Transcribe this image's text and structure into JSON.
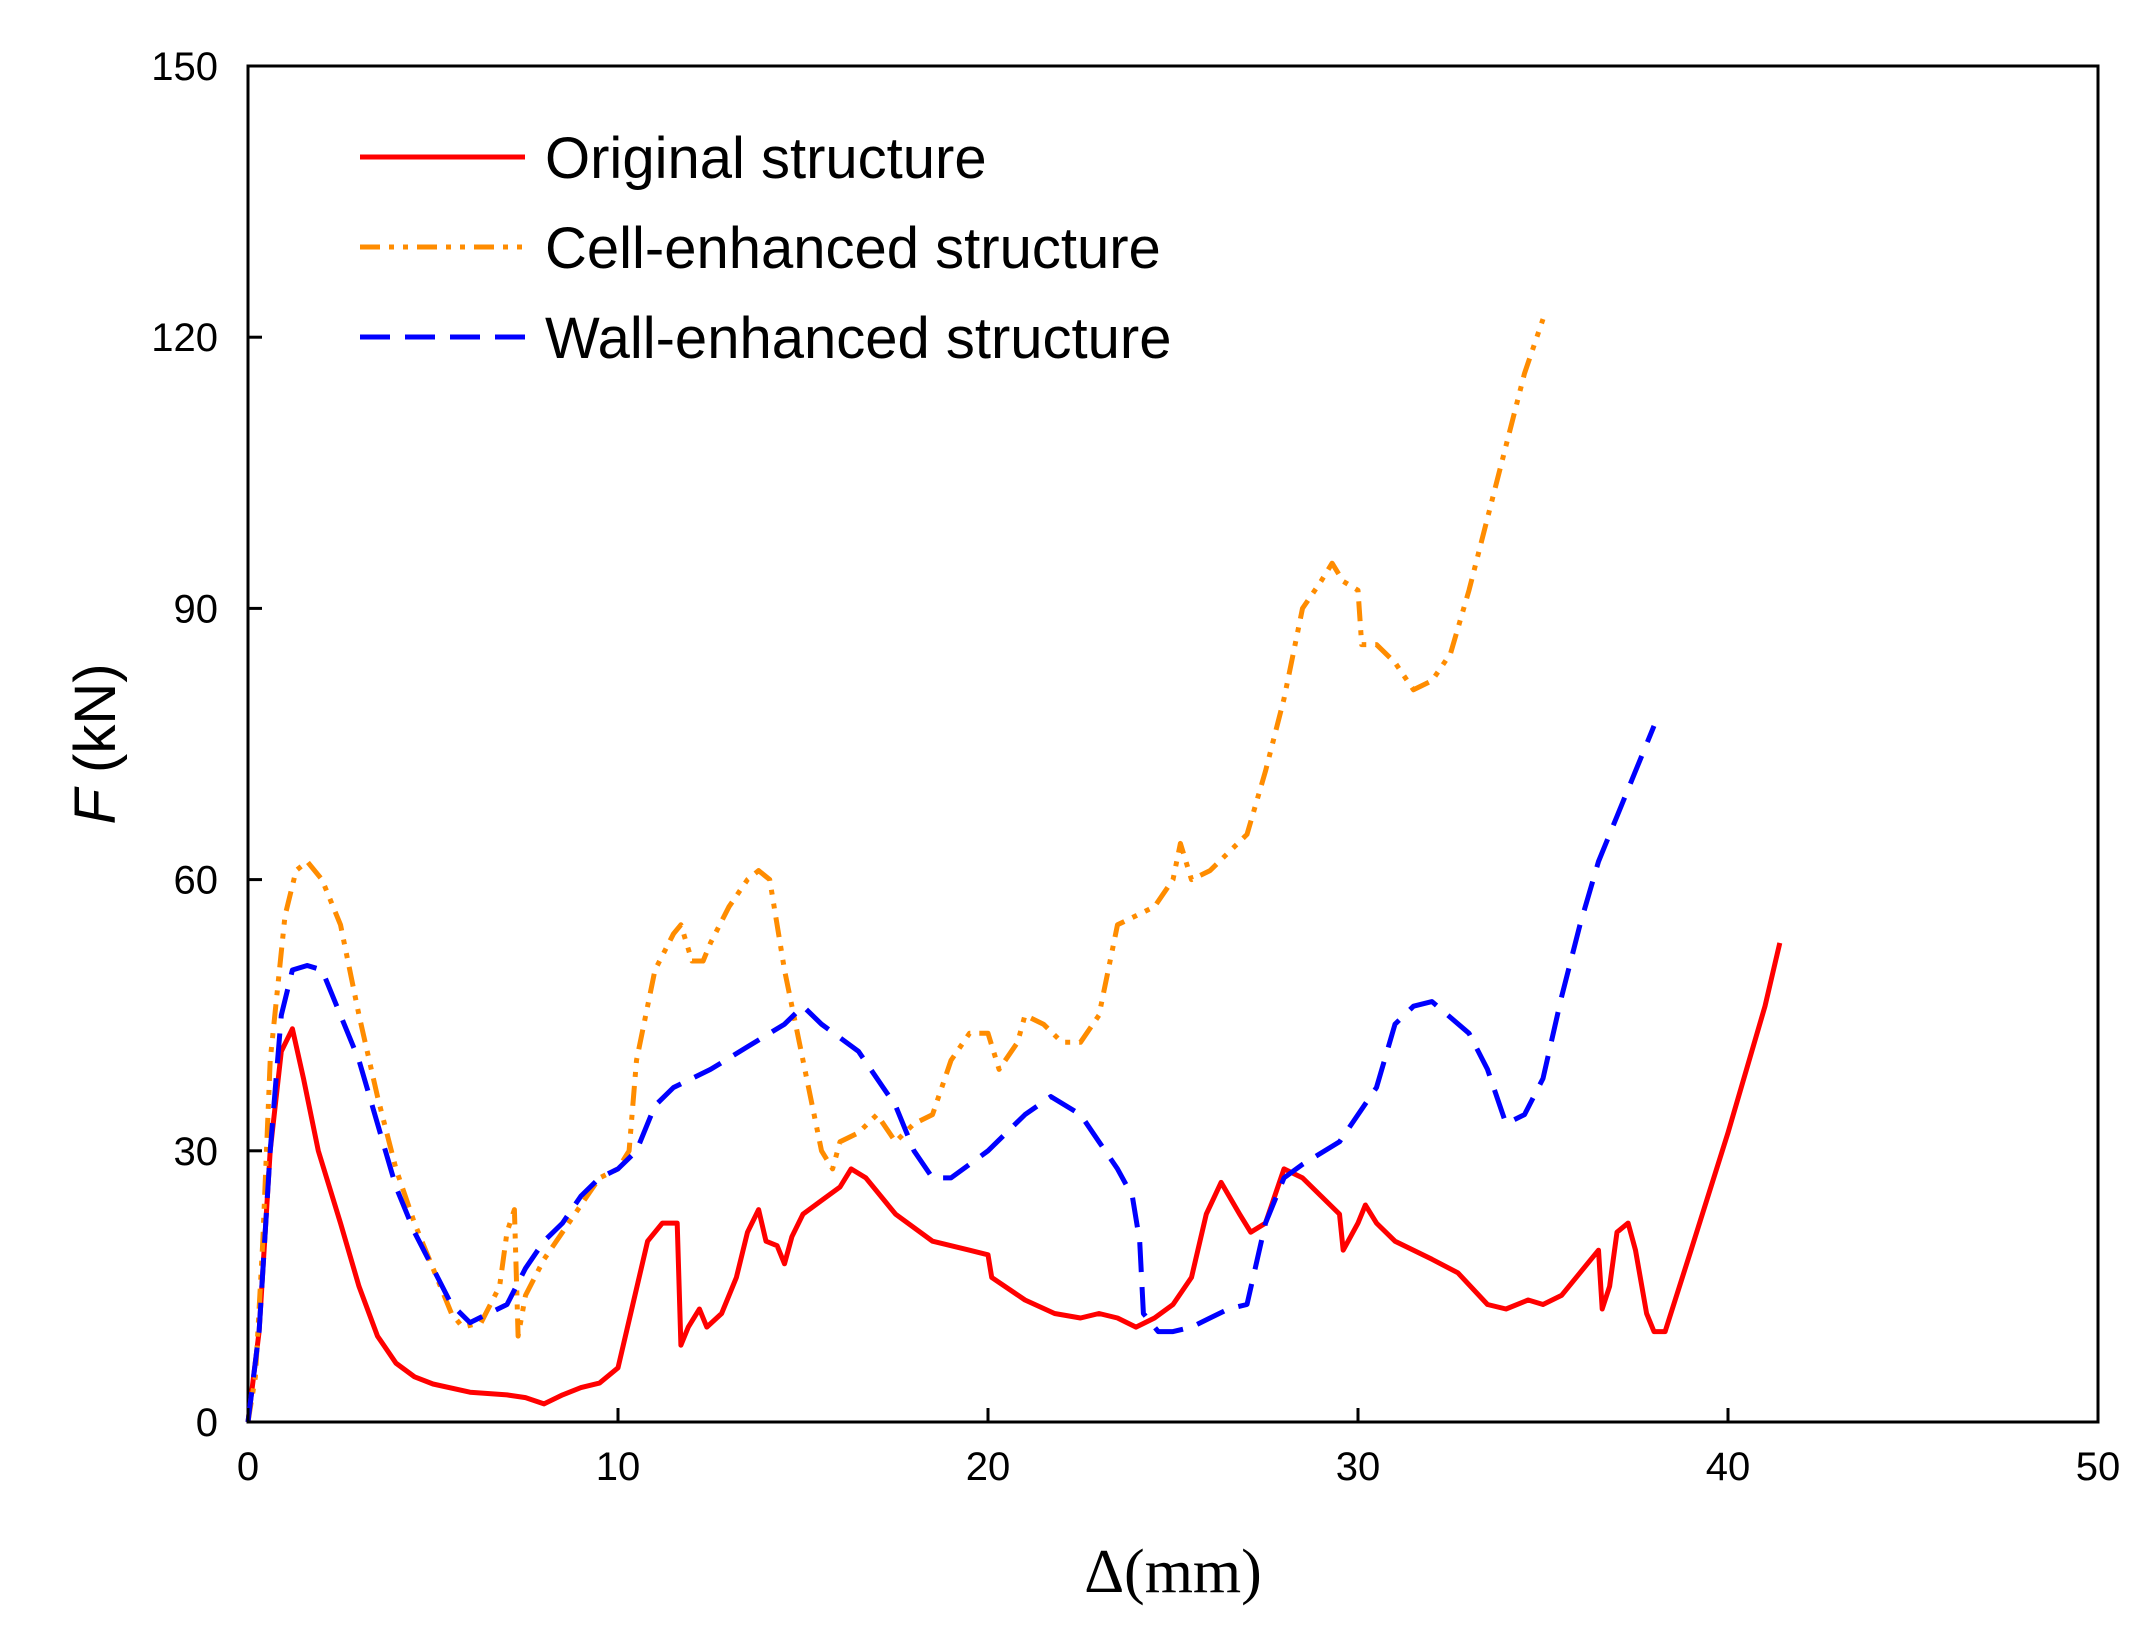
{
  "chart_data": {
    "type": "line",
    "xlabel": "Δ(mm)",
    "ylabel_var": "F",
    "ylabel_unit": " (kN)",
    "xlim": [
      0,
      50
    ],
    "ylim": [
      0,
      150
    ],
    "xticks": [
      0,
      10,
      20,
      30,
      40,
      50
    ],
    "yticks": [
      0,
      30,
      60,
      90,
      120,
      150
    ],
    "grid": false,
    "legend_position": "top-left",
    "series": [
      {
        "name": "Original structure",
        "color": "#ff0000",
        "style": "solid",
        "points": [
          [
            0,
            0
          ],
          [
            0.3,
            10
          ],
          [
            0.6,
            30
          ],
          [
            0.9,
            41
          ],
          [
            1.2,
            43.5
          ],
          [
            1.5,
            38
          ],
          [
            1.9,
            30
          ],
          [
            2.5,
            22
          ],
          [
            3,
            15
          ],
          [
            3.5,
            9.5
          ],
          [
            4,
            6.5
          ],
          [
            4.5,
            5
          ],
          [
            5,
            4.2
          ],
          [
            6,
            3.3
          ],
          [
            7,
            3
          ],
          [
            7.5,
            2.7
          ],
          [
            8,
            2
          ],
          [
            8.5,
            3
          ],
          [
            9,
            3.8
          ],
          [
            9.5,
            4.3
          ],
          [
            10,
            6
          ],
          [
            10.4,
            13
          ],
          [
            10.8,
            20
          ],
          [
            11.2,
            22
          ],
          [
            11.6,
            22
          ],
          [
            11.7,
            8.5
          ],
          [
            11.9,
            10.5
          ],
          [
            12.2,
            12.5
          ],
          [
            12.4,
            10.5
          ],
          [
            12.8,
            12
          ],
          [
            13.2,
            16
          ],
          [
            13.5,
            21
          ],
          [
            13.8,
            23.5
          ],
          [
            14,
            20
          ],
          [
            14.3,
            19.5
          ],
          [
            14.5,
            17.5
          ],
          [
            14.7,
            20.5
          ],
          [
            15,
            23
          ],
          [
            15.5,
            24.5
          ],
          [
            16,
            26
          ],
          [
            16.3,
            28
          ],
          [
            16.7,
            27
          ],
          [
            17.5,
            23
          ],
          [
            18.5,
            20
          ],
          [
            19.5,
            19
          ],
          [
            20,
            18.5
          ],
          [
            20.1,
            16
          ],
          [
            21,
            13.5
          ],
          [
            21.8,
            12
          ],
          [
            22.5,
            11.5
          ],
          [
            23,
            12
          ],
          [
            23.5,
            11.5
          ],
          [
            24,
            10.5
          ],
          [
            24.5,
            11.5
          ],
          [
            25,
            13
          ],
          [
            25.5,
            16
          ],
          [
            25.9,
            23
          ],
          [
            26.3,
            26.5
          ],
          [
            26.8,
            23
          ],
          [
            27.1,
            21
          ],
          [
            27.5,
            22
          ],
          [
            28,
            28
          ],
          [
            28.5,
            27
          ],
          [
            29,
            25
          ],
          [
            29.5,
            23
          ],
          [
            29.6,
            19
          ],
          [
            30,
            22
          ],
          [
            30.2,
            24
          ],
          [
            30.5,
            22
          ],
          [
            31,
            20
          ],
          [
            32,
            18
          ],
          [
            32.7,
            16.5
          ],
          [
            33.5,
            13
          ],
          [
            34,
            12.5
          ],
          [
            34.6,
            13.5
          ],
          [
            35,
            13
          ],
          [
            35.5,
            14
          ],
          [
            36,
            16.5
          ],
          [
            36.5,
            19
          ],
          [
            36.6,
            12.5
          ],
          [
            36.8,
            15
          ],
          [
            37,
            21
          ],
          [
            37.3,
            22
          ],
          [
            37.5,
            19
          ],
          [
            37.8,
            12
          ],
          [
            38,
            10
          ],
          [
            38.3,
            10
          ],
          [
            39,
            19
          ],
          [
            40,
            32
          ],
          [
            41,
            46
          ],
          [
            41.4,
            53
          ]
        ]
      },
      {
        "name": "Cell-enhanced structure",
        "color": "#ff8c00",
        "style": "dashdotdot",
        "points": [
          [
            0,
            0
          ],
          [
            0.2,
            5
          ],
          [
            0.4,
            20
          ],
          [
            0.6,
            40
          ],
          [
            0.8,
            48
          ],
          [
            1,
            56
          ],
          [
            1.3,
            61
          ],
          [
            1.6,
            62
          ],
          [
            2,
            60
          ],
          [
            2.5,
            55
          ],
          [
            3,
            45
          ],
          [
            3.5,
            36
          ],
          [
            4,
            28
          ],
          [
            4.5,
            22
          ],
          [
            5,
            17
          ],
          [
            5.5,
            12
          ],
          [
            5.8,
            10.5
          ],
          [
            6.3,
            11
          ],
          [
            6.8,
            15
          ],
          [
            7,
            21
          ],
          [
            7.2,
            23.5
          ],
          [
            7.3,
            9.5
          ],
          [
            7.5,
            14
          ],
          [
            8,
            18
          ],
          [
            8.5,
            21
          ],
          [
            9,
            24
          ],
          [
            9.5,
            27
          ],
          [
            10,
            28
          ],
          [
            10.3,
            30
          ],
          [
            10.5,
            40
          ],
          [
            11,
            50
          ],
          [
            11.5,
            54
          ],
          [
            11.7,
            55
          ],
          [
            12,
            51
          ],
          [
            12.3,
            51
          ],
          [
            12.5,
            53
          ],
          [
            13,
            57
          ],
          [
            13.5,
            60
          ],
          [
            13.8,
            61
          ],
          [
            14.1,
            60
          ],
          [
            14.5,
            50
          ],
          [
            15,
            40
          ],
          [
            15.5,
            30
          ],
          [
            15.8,
            28
          ],
          [
            16,
            31
          ],
          [
            16.5,
            32
          ],
          [
            17,
            34
          ],
          [
            17.5,
            31
          ],
          [
            18,
            33
          ],
          [
            18.5,
            34
          ],
          [
            19,
            40
          ],
          [
            19.5,
            43
          ],
          [
            20,
            43
          ],
          [
            20.3,
            39
          ],
          [
            20.8,
            42
          ],
          [
            21,
            45
          ],
          [
            21.5,
            44
          ],
          [
            22,
            42
          ],
          [
            22.5,
            42
          ],
          [
            23,
            45
          ],
          [
            23.5,
            55
          ],
          [
            24,
            56
          ],
          [
            24.5,
            57
          ],
          [
            25,
            60
          ],
          [
            25.2,
            64
          ],
          [
            25.5,
            60
          ],
          [
            26,
            61
          ],
          [
            27,
            65
          ],
          [
            27.5,
            72
          ],
          [
            28,
            80
          ],
          [
            28.5,
            90
          ],
          [
            29,
            93
          ],
          [
            29.3,
            95
          ],
          [
            29.6,
            93
          ],
          [
            30,
            92
          ],
          [
            30.1,
            86
          ],
          [
            30.5,
            86
          ],
          [
            31,
            84
          ],
          [
            31.5,
            81
          ],
          [
            32,
            82
          ],
          [
            32.5,
            85
          ],
          [
            33,
            92
          ],
          [
            33.5,
            100
          ],
          [
            34,
            108
          ],
          [
            34.5,
            116
          ],
          [
            35,
            122
          ]
        ]
      },
      {
        "name": "Wall-enhanced structure",
        "color": "#0000ff",
        "style": "dashed",
        "points": [
          [
            0,
            0
          ],
          [
            0.3,
            10
          ],
          [
            0.6,
            30
          ],
          [
            0.9,
            45
          ],
          [
            1.2,
            50
          ],
          [
            1.6,
            50.5
          ],
          [
            2,
            50
          ],
          [
            2.5,
            45
          ],
          [
            3,
            40
          ],
          [
            3.5,
            33
          ],
          [
            4,
            26
          ],
          [
            4.5,
            21
          ],
          [
            5,
            17
          ],
          [
            5.5,
            13
          ],
          [
            6,
            11
          ],
          [
            6.5,
            12
          ],
          [
            7,
            13
          ],
          [
            7.5,
            17
          ],
          [
            8,
            20
          ],
          [
            8.5,
            22
          ],
          [
            9,
            25
          ],
          [
            9.5,
            27
          ],
          [
            10,
            28
          ],
          [
            10.5,
            30
          ],
          [
            11,
            35
          ],
          [
            11.5,
            37
          ],
          [
            12.5,
            39
          ],
          [
            13.5,
            41.5
          ],
          [
            14.5,
            44
          ],
          [
            15,
            46
          ],
          [
            15.5,
            44
          ],
          [
            16.5,
            41
          ],
          [
            17.5,
            35
          ],
          [
            18,
            30
          ],
          [
            18.5,
            27
          ],
          [
            19,
            27
          ],
          [
            20,
            30
          ],
          [
            21,
            34
          ],
          [
            21.7,
            36
          ],
          [
            22.5,
            34
          ],
          [
            23,
            31
          ],
          [
            23.5,
            28
          ],
          [
            23.9,
            25
          ],
          [
            24.1,
            20
          ],
          [
            24.2,
            12
          ],
          [
            24.6,
            10
          ],
          [
            25,
            10
          ],
          [
            25.5,
            10.5
          ],
          [
            26,
            11.5
          ],
          [
            26.5,
            12.5
          ],
          [
            27,
            13
          ],
          [
            27.5,
            22
          ],
          [
            28,
            27
          ],
          [
            28.5,
            28.5
          ],
          [
            29.5,
            31
          ],
          [
            30.5,
            37
          ],
          [
            31,
            44
          ],
          [
            31.5,
            46
          ],
          [
            32,
            46.5
          ],
          [
            33,
            43
          ],
          [
            33.5,
            39
          ],
          [
            34,
            33
          ],
          [
            34.5,
            34
          ],
          [
            35,
            38
          ],
          [
            35.5,
            47
          ],
          [
            36,
            55
          ],
          [
            36.5,
            62
          ],
          [
            37,
            67
          ],
          [
            37.5,
            72
          ],
          [
            38,
            77
          ]
        ]
      }
    ]
  }
}
